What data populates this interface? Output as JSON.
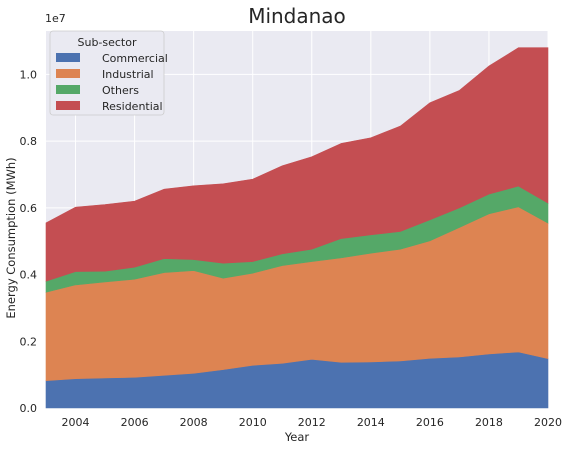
{
  "chart_data": {
    "type": "area",
    "stacked": true,
    "title": "Mindanao",
    "xlabel": "Year",
    "ylabel": "Energy Consumption (MWh)",
    "y_offset_label": "1e7",
    "xlim": [
      2003,
      2020
    ],
    "ylim": [
      0,
      11300000
    ],
    "x": [
      2003,
      2004,
      2005,
      2006,
      2007,
      2008,
      2009,
      2010,
      2011,
      2012,
      2013,
      2014,
      2015,
      2016,
      2017,
      2018,
      2019,
      2020
    ],
    "x_ticks": [
      "2004",
      "2006",
      "2008",
      "2010",
      "2012",
      "2014",
      "2016",
      "2018",
      "2020"
    ],
    "y_ticks": [
      "0.0",
      "0.2",
      "0.4",
      "0.6",
      "0.8",
      "1.0"
    ],
    "grid": true,
    "legend": {
      "title": "Sub-sector",
      "position": "top-left"
    },
    "series": [
      {
        "name": "Commercial",
        "color": "#4c72b0",
        "values": [
          820000,
          880000,
          900000,
          920000,
          980000,
          1040000,
          1150000,
          1280000,
          1340000,
          1460000,
          1370000,
          1380000,
          1410000,
          1490000,
          1530000,
          1620000,
          1680000,
          1480000
        ]
      },
      {
        "name": "Industrial",
        "color": "#dd8452",
        "values": [
          2650000,
          2810000,
          2880000,
          2940000,
          3080000,
          3080000,
          2740000,
          2760000,
          2930000,
          2930000,
          3130000,
          3260000,
          3350000,
          3520000,
          3880000,
          4200000,
          4350000,
          4060000
        ]
      },
      {
        "name": "Others",
        "color": "#55a868",
        "values": [
          330000,
          400000,
          320000,
          360000,
          420000,
          330000,
          450000,
          350000,
          350000,
          370000,
          580000,
          550000,
          530000,
          630000,
          590000,
          590000,
          620000,
          600000
        ]
      },
      {
        "name": "Residential",
        "color": "#c44e52",
        "values": [
          1750000,
          1930000,
          2000000,
          1980000,
          2080000,
          2210000,
          2380000,
          2470000,
          2640000,
          2770000,
          2850000,
          2910000,
          3160000,
          3510000,
          3520000,
          3840000,
          4150000,
          4660000
        ]
      }
    ]
  }
}
